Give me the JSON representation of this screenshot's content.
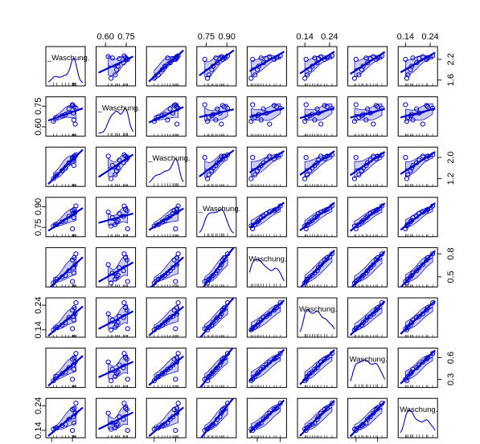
{
  "chart_data": {
    "type": "scatter",
    "n_vars": 8,
    "var_labels": [
      "_Waschung.",
      "_Waschung.",
      "_Waschung.",
      "_Waschung.",
      "Waschung.",
      "Waschung.",
      "Waschung.",
      "Waschung."
    ],
    "axis_ticks": {
      "0": {
        "labels": [
          "1.6",
          "2.2"
        ],
        "values": [
          1.6,
          2.2
        ],
        "range": [
          1.5,
          2.5
        ]
      },
      "1": {
        "labels": [
          "0.60",
          "0.75"
        ],
        "values": [
          0.6,
          0.75
        ],
        "range": [
          0.55,
          0.8
        ]
      },
      "2": {
        "labels": [
          "1.2",
          "2.0"
        ],
        "values": [
          1.2,
          2.0
        ],
        "range": [
          1.0,
          2.3
        ]
      },
      "3": {
        "labels": [
          "0.75",
          "0.90"
        ],
        "values": [
          0.75,
          0.9
        ],
        "range": [
          0.7,
          0.95
        ]
      },
      "4": {
        "labels": [
          "0.5",
          "0.8"
        ],
        "values": [
          0.5,
          0.8
        ],
        "range": [
          0.4,
          0.85
        ]
      },
      "5": {
        "labels": [
          "0.14",
          "0.24"
        ],
        "values": [
          0.14,
          0.24
        ],
        "range": [
          0.12,
          0.26
        ]
      },
      "6": {
        "labels": [
          "0.3",
          "0.6"
        ],
        "values": [
          0.3,
          0.6
        ],
        "range": [
          0.22,
          0.7
        ]
      },
      "7": {
        "labels": [
          "0.14",
          "0.24"
        ],
        "values": [
          0.14,
          0.24
        ],
        "range": [
          0.12,
          0.26
        ]
      }
    },
    "top_axes": [
      1,
      3,
      5,
      7
    ],
    "bottom_axes": [
      0,
      2,
      4,
      6
    ],
    "right_axes": [
      0,
      2,
      4,
      6
    ],
    "left_axes": [
      1,
      3,
      5,
      7
    ],
    "observations": [
      [
        2.3,
        0.735,
        2.1,
        0.905,
        0.8,
        0.25,
        0.66,
        0.25
      ],
      [
        2.25,
        0.745,
        2.05,
        0.88,
        0.75,
        0.23,
        0.6,
        0.23
      ],
      [
        2.2,
        0.755,
        1.95,
        0.87,
        0.72,
        0.22,
        0.58,
        0.225
      ],
      [
        2.28,
        0.62,
        2.05,
        0.86,
        0.66,
        0.205,
        0.54,
        0.21
      ],
      [
        2.22,
        0.7,
        1.9,
        0.85,
        0.62,
        0.195,
        0.5,
        0.195
      ],
      [
        2.1,
        0.73,
        1.8,
        0.83,
        0.58,
        0.19,
        0.46,
        0.185
      ],
      [
        2.24,
        0.65,
        1.7,
        0.82,
        0.55,
        0.18,
        0.44,
        0.17
      ],
      [
        2.0,
        0.69,
        1.6,
        0.8,
        0.52,
        0.17,
        0.4,
        0.165
      ],
      [
        1.9,
        0.68,
        1.5,
        0.79,
        0.5,
        0.16,
        0.38,
        0.16
      ],
      [
        1.75,
        0.67,
        1.35,
        0.77,
        0.47,
        0.15,
        0.34,
        0.15
      ],
      [
        2.2,
        0.76,
        2.0,
        0.74,
        0.44,
        0.145,
        0.3,
        0.14
      ],
      [
        1.65,
        0.64,
        1.2,
        0.76,
        0.42,
        0.14,
        0.28,
        0.145
      ]
    ]
  }
}
